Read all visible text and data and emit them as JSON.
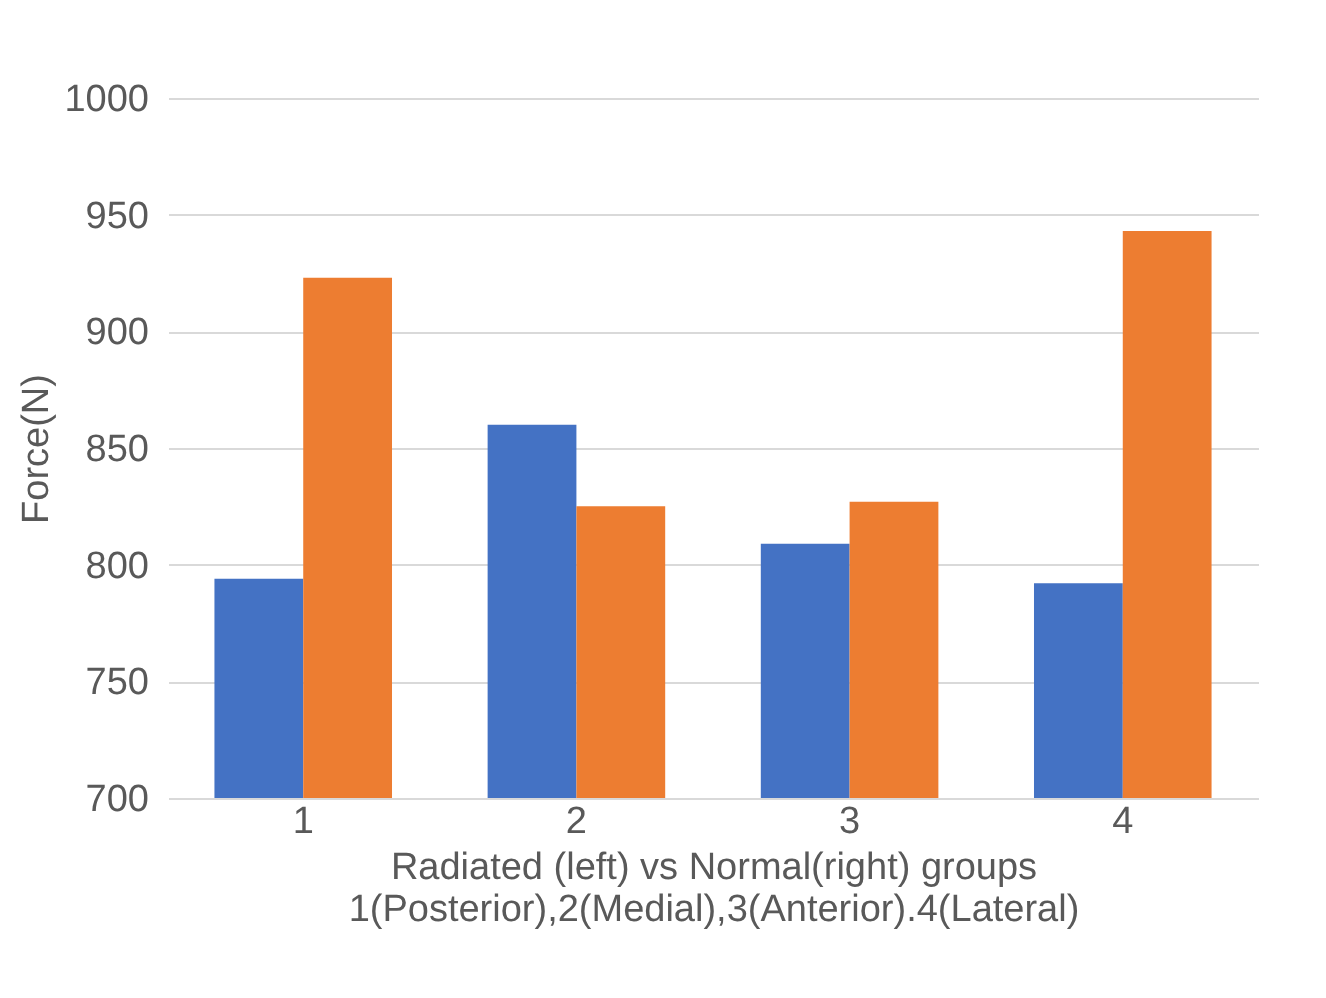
{
  "chart_data": {
    "type": "bar",
    "xlabel": "Radiated (left) vs Normal(right) groups\n1(Posterior),2(Medial),3(Anterior).4(Lateral)",
    "ylabel": "Force(N)",
    "categories": [
      "1",
      "2",
      "3",
      "4"
    ],
    "series": [
      {
        "color": "#4472c4",
        "values": [
          794,
          860,
          809,
          792
        ]
      },
      {
        "color": "#ed7d31",
        "values": [
          923,
          825,
          827,
          943
        ]
      }
    ],
    "ylim": [
      700,
      1000
    ],
    "yticks": [
      700,
      750,
      800,
      850,
      900,
      950,
      1000
    ],
    "grid": "y"
  }
}
